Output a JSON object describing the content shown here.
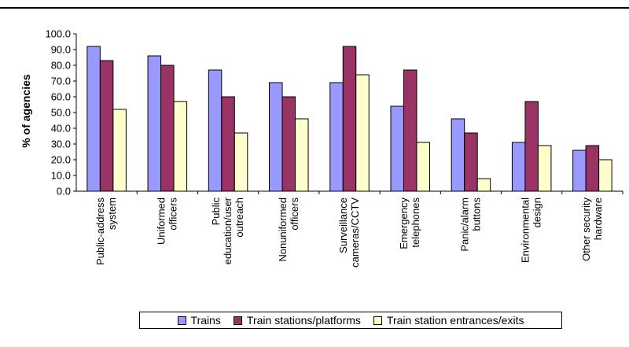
{
  "chart_data": {
    "type": "bar",
    "title": "",
    "xlabel": "",
    "ylabel": "% of agencies",
    "ylim": [
      0,
      100
    ],
    "ytick_labels": [
      "0.0",
      "10.0",
      "20.0",
      "30.0",
      "40.0",
      "50.0",
      "60.0",
      "70.0",
      "80.0",
      "90.0",
      "100.0"
    ],
    "grid": false,
    "legend_position": "bottom",
    "categories": [
      [
        "Public-address",
        "system"
      ],
      [
        "Uniformed",
        "officers"
      ],
      [
        "Public",
        "education/user",
        "outreach"
      ],
      [
        "Nonuniformed",
        "officers"
      ],
      [
        "Surveillance",
        "cameras/CCTV"
      ],
      [
        "Emergency",
        "telephones"
      ],
      [
        "Panic/alarm",
        "buttons"
      ],
      [
        "Environmental",
        "design"
      ],
      [
        "Other security",
        "hardware"
      ]
    ],
    "series": [
      {
        "name": "Trains",
        "color": "#9999ff",
        "values": [
          92,
          86,
          77,
          69,
          69,
          54,
          46,
          31,
          26
        ]
      },
      {
        "name": "Train stations/platforms",
        "color": "#993366",
        "values": [
          83,
          80,
          60,
          60,
          92,
          77,
          37,
          57,
          29
        ]
      },
      {
        "name": "Train station entrances/exits",
        "color": "#ffffcc",
        "values": [
          52,
          57,
          37,
          46,
          74,
          31,
          8,
          29,
          20
        ]
      }
    ]
  }
}
